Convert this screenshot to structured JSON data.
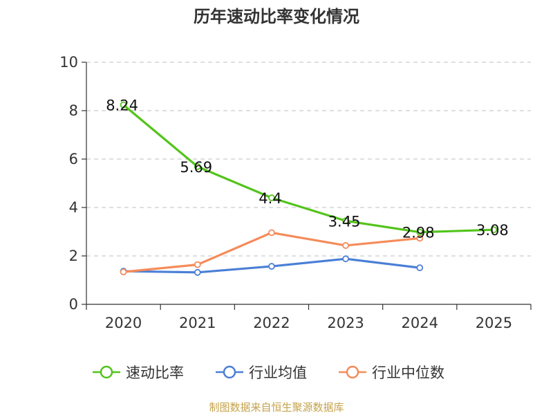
{
  "title": "历年速动比率变化情况",
  "source": "制图数据来自恒生聚源数据库",
  "chart_data": {
    "type": "line",
    "title": "历年速动比率变化情况",
    "categories": [
      "2020",
      "2021",
      "2022",
      "2023",
      "2024",
      "2025"
    ],
    "ylim": [
      0,
      10
    ],
    "yticks": [
      0,
      2,
      4,
      6,
      8,
      10
    ],
    "grid": true,
    "legend_position": "bottom",
    "series": [
      {
        "name": "速动比率",
        "color": "#52c41a",
        "values": [
          8.24,
          5.69,
          4.4,
          3.45,
          2.98,
          3.08
        ],
        "labels": [
          "8.24",
          "5.69",
          "4.4",
          "3.45",
          "2.98",
          "3.08"
        ]
      },
      {
        "name": "行业均值",
        "color": "#4a7fd6",
        "values": [
          1.37,
          1.32,
          1.57,
          1.88,
          1.51,
          null
        ]
      },
      {
        "name": "行业中位数",
        "color": "#f58b5a",
        "values": [
          1.34,
          1.64,
          2.96,
          2.43,
          2.73,
          null
        ]
      }
    ]
  }
}
